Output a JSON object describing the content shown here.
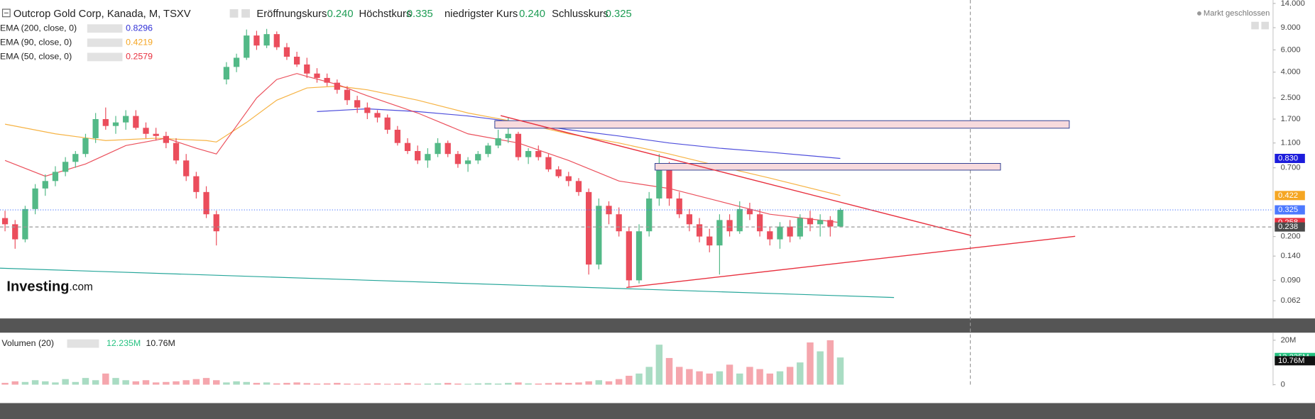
{
  "chart_data": {
    "type": "candlestick",
    "title": "Outcrop Gold Corp, Kanada, M, TSXV",
    "header_ohlc": [
      {
        "label": "Eröffnungskurs",
        "value": "0.240"
      },
      {
        "label": "Höchstkurs",
        "value": "0.335"
      },
      {
        "label": "niedrigster Kurs",
        "value": "0.240"
      },
      {
        "label": "Schlusskurs",
        "value": "0.325"
      }
    ],
    "market_status": "Markt geschlossen",
    "watermark": [
      "Investing",
      ".com"
    ],
    "log_scale": true,
    "grid": false,
    "up_color": "#53b987",
    "down_color": "#eb4d5c",
    "ylim": [
      0.0565,
      14.9
    ],
    "yticks": [
      {
        "value": 14,
        "label": "14.000"
      },
      {
        "value": 9,
        "label": "9.000"
      },
      {
        "value": 6,
        "label": "6.000"
      },
      {
        "value": 4,
        "label": "4.000"
      },
      {
        "value": 2.5,
        "label": "2.500"
      },
      {
        "value": 1.7,
        "label": "1.700"
      },
      {
        "value": 1.1,
        "label": "1.100"
      },
      {
        "value": 0.7,
        "label": "0.700"
      },
      {
        "value": 0.2,
        "label": "0.200"
      },
      {
        "value": 0.14,
        "label": "0.140"
      },
      {
        "value": 0.09,
        "label": "0.090"
      },
      {
        "value": 0.062,
        "label": "0.062"
      }
    ],
    "ohlc": [
      [
        0.28,
        0.32,
        0.22,
        0.25
      ],
      [
        0.25,
        0.27,
        0.16,
        0.19
      ],
      [
        0.19,
        0.35,
        0.18,
        0.33
      ],
      [
        0.33,
        0.52,
        0.3,
        0.48
      ],
      [
        0.48,
        0.62,
        0.42,
        0.55
      ],
      [
        0.55,
        0.72,
        0.5,
        0.65
      ],
      [
        0.65,
        0.85,
        0.6,
        0.78
      ],
      [
        0.78,
        0.95,
        0.7,
        0.9
      ],
      [
        0.9,
        1.3,
        0.85,
        1.2
      ],
      [
        1.2,
        1.9,
        1.1,
        1.7
      ],
      [
        1.7,
        2.1,
        1.4,
        1.5
      ],
      [
        1.5,
        1.8,
        1.3,
        1.6
      ],
      [
        1.6,
        2.0,
        1.4,
        1.8
      ],
      [
        1.8,
        2.0,
        1.4,
        1.45
      ],
      [
        1.45,
        1.6,
        1.2,
        1.3
      ],
      [
        1.3,
        1.45,
        1.15,
        1.25
      ],
      [
        1.25,
        1.35,
        1.0,
        1.1
      ],
      [
        1.1,
        1.2,
        0.75,
        0.8
      ],
      [
        0.8,
        0.9,
        0.55,
        0.6
      ],
      [
        0.6,
        0.65,
        0.4,
        0.45
      ],
      [
        0.45,
        0.5,
        0.28,
        0.3
      ],
      [
        0.3,
        0.32,
        0.17,
        0.22
      ],
      [
        3.5,
        4.8,
        3.2,
        4.4
      ],
      [
        4.4,
        5.6,
        4.0,
        5.2
      ],
      [
        5.2,
        8.7,
        5.0,
        7.8
      ],
      [
        7.8,
        8.5,
        6.0,
        6.5
      ],
      [
        6.5,
        8.8,
        6.2,
        8.0
      ],
      [
        8.0,
        8.4,
        6.0,
        6.3
      ],
      [
        6.3,
        6.8,
        5.0,
        5.3
      ],
      [
        5.3,
        5.8,
        4.4,
        4.6
      ],
      [
        4.6,
        5.2,
        3.6,
        3.9
      ],
      [
        3.9,
        4.3,
        3.3,
        3.6
      ],
      [
        3.6,
        3.9,
        3.1,
        3.3
      ],
      [
        3.3,
        3.5,
        2.7,
        2.9
      ],
      [
        2.9,
        3.1,
        2.2,
        2.4
      ],
      [
        2.4,
        2.6,
        1.9,
        2.1
      ],
      [
        2.1,
        2.3,
        1.7,
        1.9
      ],
      [
        1.9,
        2.0,
        1.6,
        1.75
      ],
      [
        1.75,
        1.85,
        1.3,
        1.4
      ],
      [
        1.4,
        1.5,
        1.05,
        1.1
      ],
      [
        1.1,
        1.2,
        0.9,
        0.95
      ],
      [
        0.95,
        1.05,
        0.75,
        0.8
      ],
      [
        0.8,
        1.0,
        0.7,
        0.9
      ],
      [
        0.9,
        1.2,
        0.85,
        1.1
      ],
      [
        1.1,
        1.15,
        0.85,
        0.9
      ],
      [
        0.9,
        0.95,
        0.7,
        0.75
      ],
      [
        0.75,
        0.85,
        0.65,
        0.8
      ],
      [
        0.8,
        0.95,
        0.75,
        0.9
      ],
      [
        0.9,
        1.1,
        0.85,
        1.05
      ],
      [
        1.05,
        1.4,
        1.0,
        1.2
      ],
      [
        1.2,
        1.75,
        1.1,
        1.3
      ],
      [
        1.3,
        1.35,
        0.8,
        0.85
      ],
      [
        0.85,
        1.0,
        0.75,
        0.95
      ],
      [
        0.95,
        1.05,
        0.8,
        0.85
      ],
      [
        0.85,
        0.9,
        0.65,
        0.68
      ],
      [
        0.68,
        0.72,
        0.58,
        0.6
      ],
      [
        0.6,
        0.65,
        0.5,
        0.55
      ],
      [
        0.55,
        0.58,
        0.42,
        0.45
      ],
      [
        0.45,
        0.48,
        0.1,
        0.12
      ],
      [
        0.12,
        0.4,
        0.11,
        0.35
      ],
      [
        0.35,
        0.38,
        0.25,
        0.3
      ],
      [
        0.3,
        0.34,
        0.2,
        0.22
      ],
      [
        0.22,
        0.24,
        0.08,
        0.09
      ],
      [
        0.09,
        0.25,
        0.085,
        0.22
      ],
      [
        0.22,
        0.45,
        0.2,
        0.4
      ],
      [
        0.4,
        0.9,
        0.35,
        0.75
      ],
      [
        0.75,
        0.78,
        0.35,
        0.4
      ],
      [
        0.4,
        0.45,
        0.28,
        0.3
      ],
      [
        0.3,
        0.33,
        0.22,
        0.25
      ],
      [
        0.25,
        0.28,
        0.18,
        0.2
      ],
      [
        0.2,
        0.23,
        0.15,
        0.17
      ],
      [
        0.17,
        0.3,
        0.1,
        0.27
      ],
      [
        0.27,
        0.3,
        0.2,
        0.22
      ],
      [
        0.22,
        0.38,
        0.21,
        0.33
      ],
      [
        0.33,
        0.37,
        0.27,
        0.3
      ],
      [
        0.3,
        0.33,
        0.2,
        0.22
      ],
      [
        0.22,
        0.24,
        0.17,
        0.19
      ],
      [
        0.19,
        0.26,
        0.16,
        0.24
      ],
      [
        0.24,
        0.27,
        0.18,
        0.2
      ],
      [
        0.2,
        0.3,
        0.19,
        0.28
      ],
      [
        0.28,
        0.32,
        0.22,
        0.25
      ],
      [
        0.25,
        0.3,
        0.2,
        0.27
      ],
      [
        0.27,
        0.29,
        0.2,
        0.24
      ],
      [
        0.24,
        0.335,
        0.24,
        0.325
      ]
    ],
    "series": [
      {
        "name": "EMA (200, close, 0)",
        "color": "#2f2fd6",
        "x": [
          31,
          36,
          41,
          46,
          51,
          56,
          61,
          66,
          71,
          76,
          83
        ],
        "values": [
          1.95,
          2.05,
          1.95,
          1.8,
          1.6,
          1.4,
          1.25,
          1.1,
          1.0,
          0.93,
          0.8296
        ]
      },
      {
        "name": "EMA (90, close, 0)",
        "color": "#f5a623",
        "x": [
          0,
          5,
          10,
          15,
          20,
          21,
          24,
          27,
          30,
          33,
          36,
          41,
          46,
          51,
          56,
          61,
          66,
          71,
          76,
          83
        ],
        "values": [
          1.55,
          1.3,
          1.15,
          1.2,
          1.15,
          1.12,
          1.6,
          2.4,
          3.0,
          3.1,
          2.9,
          2.4,
          1.9,
          1.6,
          1.3,
          1.1,
          0.9,
          0.72,
          0.58,
          0.4219
        ]
      },
      {
        "name": "EMA (50, close, 0)",
        "color": "#e8313f",
        "x": [
          0,
          4,
          8,
          12,
          16,
          19,
          21,
          23,
          25,
          27,
          29,
          30,
          33,
          36,
          41,
          46,
          51,
          56,
          61,
          66,
          71,
          76,
          83
        ],
        "values": [
          0.8,
          0.6,
          0.75,
          1.05,
          1.2,
          1.0,
          0.9,
          1.5,
          2.5,
          3.5,
          3.9,
          3.7,
          3.2,
          2.6,
          1.9,
          1.3,
          1.1,
          0.8,
          0.55,
          0.48,
          0.38,
          0.3,
          0.2579
        ]
      }
    ],
    "price_labels": [
      {
        "value": 0.83,
        "label": "0.830",
        "color": "#1c1cdc"
      },
      {
        "value": 0.422,
        "label": "0.422",
        "color": "#f5a623"
      },
      {
        "value": 0.325,
        "label": "0.325",
        "color": "#4d79ff"
      },
      {
        "value": 0.258,
        "label": "0.258",
        "color": "#e8313f"
      },
      {
        "value": 0.238,
        "label": "0.238",
        "color": "#4a4a4a"
      }
    ],
    "volume": {
      "name": "Volumen (20)",
      "ylim": [
        0,
        23.4
      ],
      "yticks": [
        {
          "value": 20,
          "label": "20M"
        },
        0
      ],
      "values": [
        0.8,
        1.5,
        1.2,
        2,
        1.5,
        1,
        2.5,
        1.2,
        3,
        2,
        5,
        3,
        2,
        1.5,
        2,
        1,
        1.2,
        1.5,
        2,
        2.5,
        3,
        2,
        1,
        1.5,
        1.2,
        0.8,
        1,
        0.6,
        0.8,
        1,
        0.7,
        0.5,
        0.6,
        0.8,
        0.5,
        0.4,
        0.5,
        0.6,
        0.4,
        0.5,
        0.7,
        0.4,
        0.5,
        0.6,
        0.8,
        0.5,
        0.4,
        0.6,
        0.7,
        0.5,
        0.8,
        1,
        0.6,
        0.5,
        0.7,
        0.9,
        0.8,
        1,
        1.5,
        2,
        1.5,
        2.5,
        4,
        5,
        8,
        18,
        12,
        8,
        7,
        6,
        5,
        6,
        9,
        5,
        8,
        7,
        5,
        6,
        8,
        10,
        19,
        15,
        20,
        12.235
      ],
      "last": {
        "value": 12.235,
        "label": "12.235M",
        "color": "#26c281"
      },
      "ma": {
        "value": 10.76,
        "label": "10.76M",
        "color": "#111111"
      }
    }
  }
}
